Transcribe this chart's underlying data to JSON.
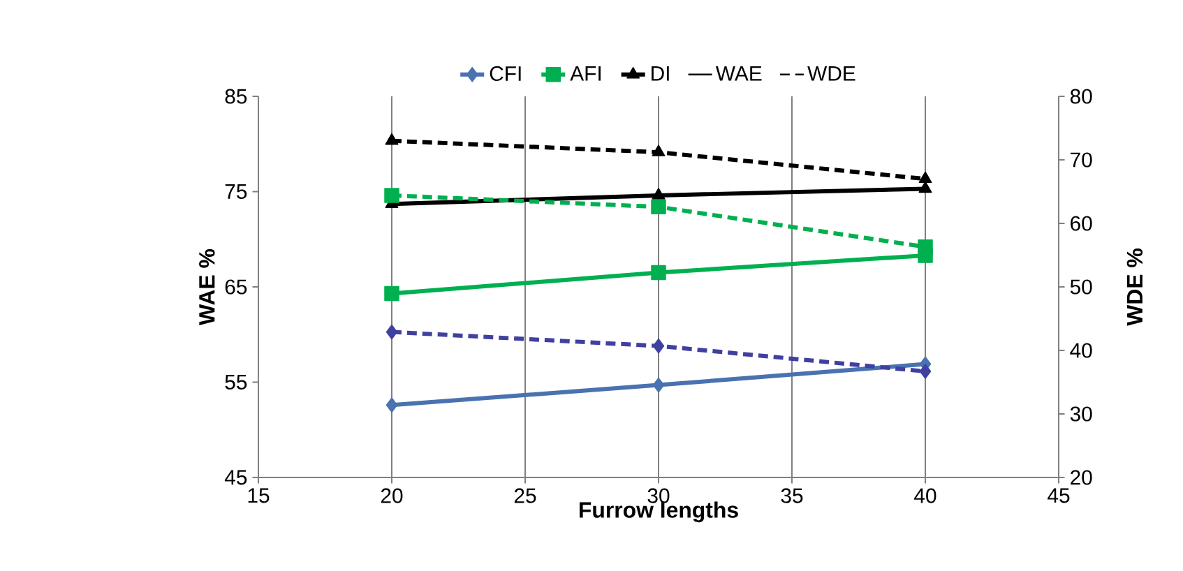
{
  "chart_data": {
    "type": "line",
    "xlabel": "Furrow lengths",
    "ylabel": "WAE %",
    "y2label": "WDE %",
    "x": [
      20,
      30,
      40
    ],
    "series": [
      {
        "name": "CFI",
        "color": "#4a72b0",
        "values": [
          52.6,
          54.7,
          56.9
        ],
        "marker": "diamond",
        "line_style": "solid"
      },
      {
        "name": "AFI",
        "color": "#00b050",
        "values": [
          64.3,
          66.5,
          68.3
        ],
        "marker": "square",
        "line_style": "solid"
      },
      {
        "name": "DI",
        "color": "#000000",
        "values": [
          73.7,
          74.6,
          75.3
        ],
        "marker": "triangle",
        "line_style": "solid"
      },
      {
        "name": "WAE",
        "color": "#000000",
        "values": [
          null,
          null,
          null
        ],
        "marker": "none",
        "line_style": "solid"
      },
      {
        "name": "WDE",
        "color": "#000000",
        "values": [
          null,
          null,
          null
        ],
        "marker": "none",
        "line_style": "dashed"
      },
      {
        "color": "#4040a0",
        "values": [
          42.9,
          40.7,
          36.7
        ],
        "marker": "diamond",
        "line_style": "dashed",
        "axis": "y2"
      },
      {
        "color": "#00b050",
        "values": [
          64.4,
          62.6,
          56.3
        ],
        "marker": "square",
        "line_style": "dashed",
        "axis": "y2"
      },
      {
        "color": "#000000",
        "values": [
          73.0,
          71.2,
          67.0
        ],
        "marker": "triangle",
        "line_style": "dashed",
        "axis": "y2"
      }
    ],
    "xlim": [
      15,
      45
    ],
    "xticks": [
      15,
      20,
      25,
      30,
      35,
      40,
      45
    ],
    "ylim": [
      45,
      85
    ],
    "yticks": [
      45,
      55,
      65,
      75,
      85
    ],
    "y2lim": [
      20,
      80
    ],
    "y2ticks": [
      20,
      30,
      40,
      50,
      60,
      70,
      80
    ],
    "grid": "x",
    "legend": "top"
  }
}
